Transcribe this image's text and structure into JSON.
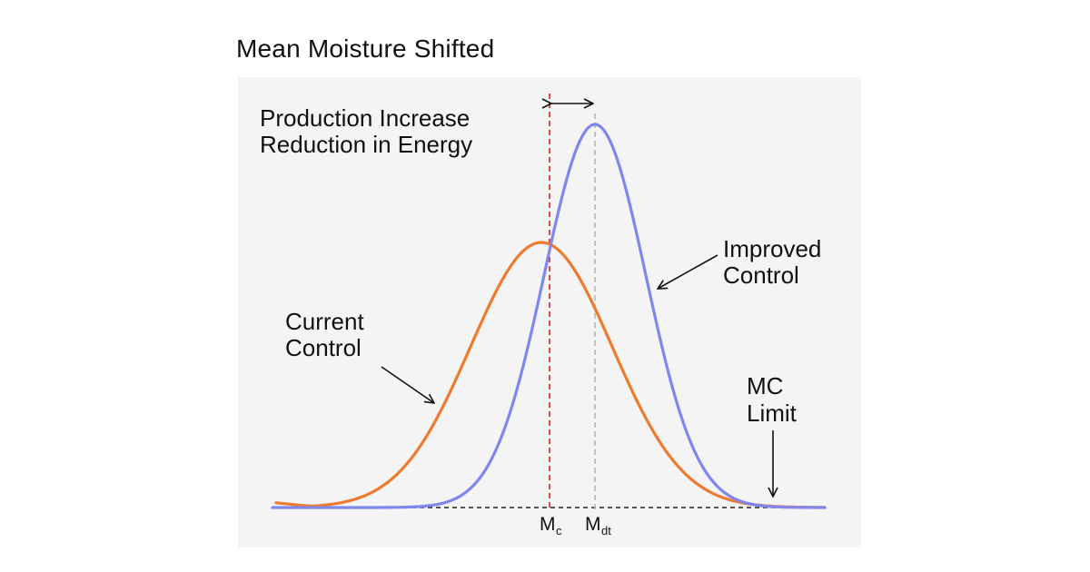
{
  "title": "Mean Moisture Shifted",
  "annotations": {
    "production_line1": "Production Increase",
    "production_line2": "Reduction in Energy",
    "improved_line1": "Improved",
    "improved_line2": "Control",
    "current_line1": "Current",
    "current_line2": "Control",
    "mc_line1": "MC",
    "mc_line2": "Limit"
  },
  "axis_labels": {
    "mc_main": "M",
    "mc_sub": "c",
    "mdt_main": "M",
    "mdt_sub": "dt"
  },
  "colors": {
    "current_control": "#ed7a2e",
    "improved_control": "#7f86ee",
    "mc_line": "#e21b1b",
    "mdt_line": "#b5b5b5",
    "panel_bg": "#f4f4f4"
  }
}
